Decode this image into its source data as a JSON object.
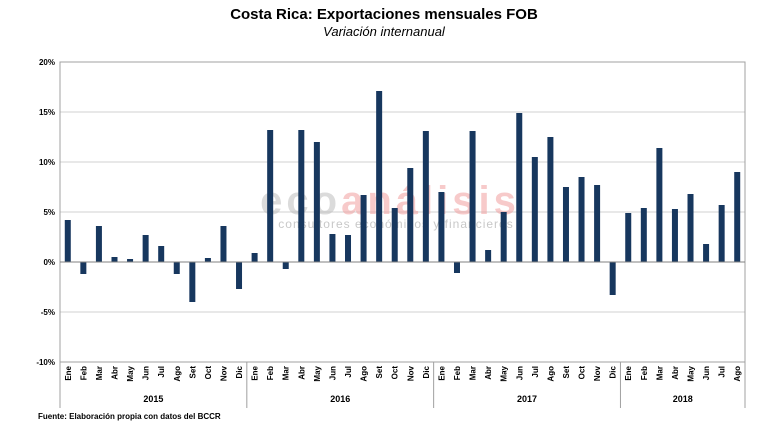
{
  "chart_data": {
    "type": "bar",
    "title": "Costa Rica: Exportaciones mensuales FOB",
    "subtitle": "Variación internanual",
    "source": "Fuente: Elaboración propia con datos del BCCR",
    "watermark": {
      "part1": "eco",
      "part2": "análisis",
      "tagline": "consultores económicos y financieros",
      "color1": "#bfbfbf",
      "color2": "#f2a0a0"
    },
    "bar_color": "#17375e",
    "grid": true,
    "ylim": [
      -10,
      20
    ],
    "yticks": [
      {
        "value": -10,
        "label": "-10%"
      },
      {
        "value": -5,
        "label": "-5%"
      },
      {
        "value": 0,
        "label": "0%"
      },
      {
        "value": 5,
        "label": "5%"
      },
      {
        "value": 10,
        "label": "10%"
      },
      {
        "value": 15,
        "label": "15%"
      },
      {
        "value": 20,
        "label": "20%"
      }
    ],
    "years": [
      {
        "label": "2015",
        "count": 12
      },
      {
        "label": "2016",
        "count": 12
      },
      {
        "label": "2017",
        "count": 12
      },
      {
        "label": "2018",
        "count": 8
      }
    ],
    "categories": [
      "Ene",
      "Feb",
      "Mar",
      "Abr",
      "May",
      "Jun",
      "Jul",
      "Ago",
      "Set",
      "Oct",
      "Nov",
      "Dic",
      "Ene",
      "Feb",
      "Mar",
      "Abr",
      "May",
      "Jun",
      "Jul",
      "Ago",
      "Set",
      "Oct",
      "Nov",
      "Dic",
      "Ene",
      "Feb",
      "Mar",
      "Abr",
      "May",
      "Jun",
      "Jul",
      "Ago",
      "Set",
      "Oct",
      "Nov",
      "Dic",
      "Ene",
      "Feb",
      "Mar",
      "Abr",
      "May",
      "Jun",
      "Jul",
      "Ago"
    ],
    "values": [
      4.2,
      -1.2,
      3.6,
      0.5,
      0.3,
      2.7,
      1.6,
      -1.2,
      -4.0,
      0.4,
      3.6,
      -2.7,
      0.9,
      13.2,
      -0.7,
      13.2,
      12.0,
      2.8,
      2.7,
      6.7,
      17.1,
      5.4,
      9.4,
      13.1,
      7.0,
      -1.1,
      13.1,
      1.2,
      5.0,
      14.9,
      10.5,
      12.5,
      7.5,
      8.5,
      7.7,
      -3.3,
      4.9,
      5.4,
      11.4,
      5.3,
      6.8,
      1.8,
      5.7,
      9.0
    ]
  }
}
